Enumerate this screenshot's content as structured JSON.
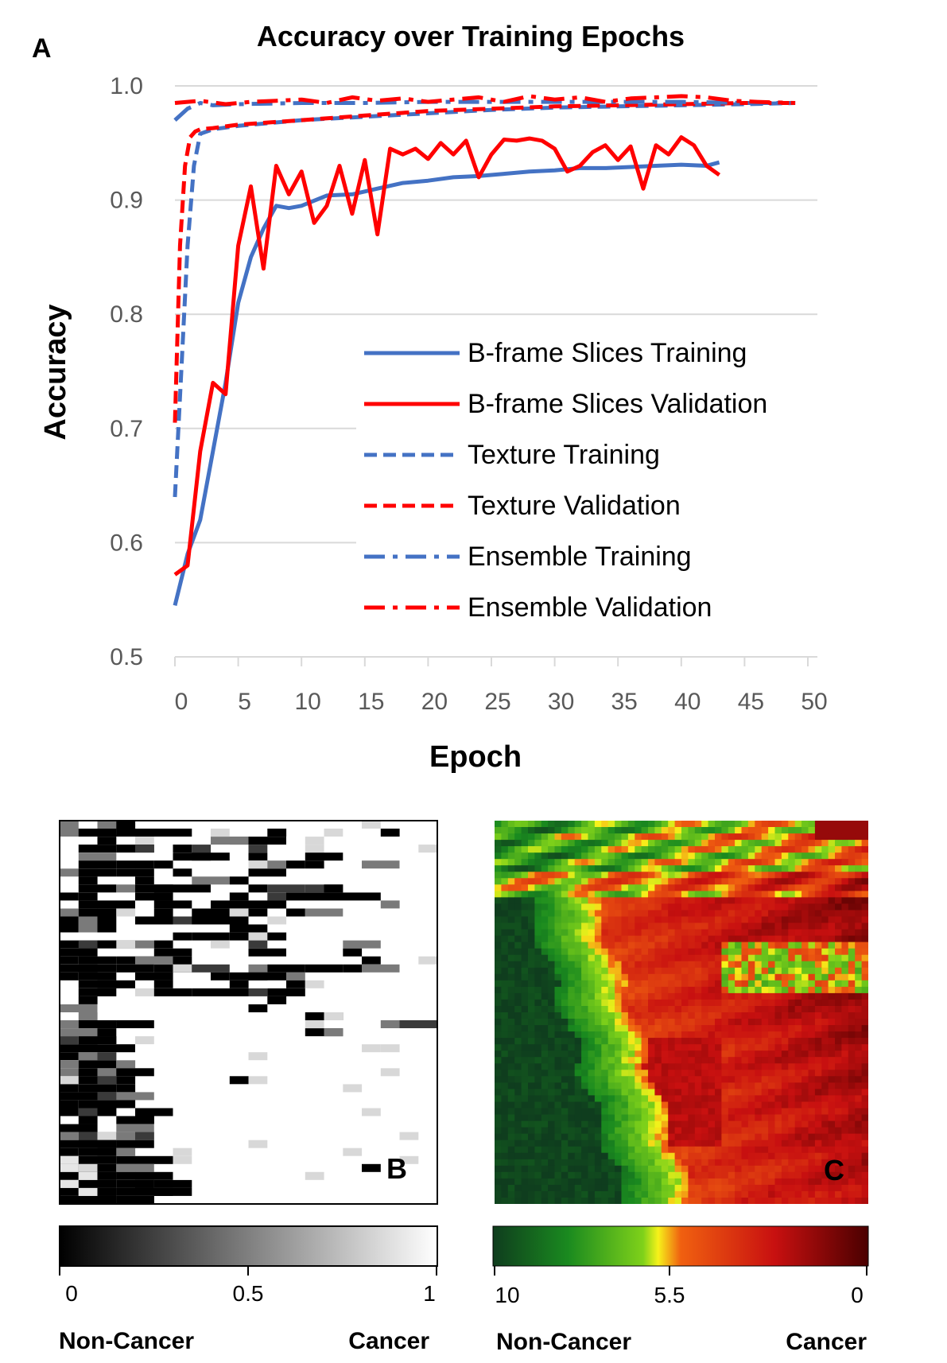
{
  "panel_a": {
    "label": "A",
    "chart_data": {
      "type": "line",
      "title": "Accuracy over Training Epochs",
      "xlabel": "Epoch",
      "ylabel": "Accuracy",
      "xlim": [
        0,
        50
      ],
      "ylim": [
        0.5,
        1.0
      ],
      "xticks": [
        "0",
        "5",
        "10",
        "15",
        "20",
        "25",
        "30",
        "35",
        "40",
        "45",
        "50"
      ],
      "yticks": [
        "0.5",
        "0.6",
        "0.7",
        "0.8",
        "0.9",
        "1.0"
      ],
      "grid": "horizontal",
      "legend_position": "center-right",
      "series": [
        {
          "name": "B-frame Slices Training",
          "color": "#4472C4",
          "dash": "solid",
          "x": [
            0,
            1,
            2,
            3,
            4,
            5,
            6,
            7,
            8,
            9,
            10,
            12,
            14,
            16,
            18,
            20,
            22,
            24,
            26,
            28,
            30,
            32,
            34,
            36,
            38,
            40,
            42,
            43
          ],
          "y": [
            0.545,
            0.59,
            0.62,
            0.68,
            0.74,
            0.81,
            0.85,
            0.875,
            0.895,
            0.893,
            0.895,
            0.904,
            0.905,
            0.91,
            0.915,
            0.917,
            0.92,
            0.921,
            0.923,
            0.925,
            0.926,
            0.928,
            0.928,
            0.929,
            0.93,
            0.931,
            0.93,
            0.933
          ]
        },
        {
          "name": "B-frame Slices Validation",
          "color": "#FF0000",
          "dash": "solid",
          "x": [
            0,
            1,
            2,
            3,
            4,
            5,
            6,
            7,
            8,
            9,
            10,
            11,
            12,
            13,
            14,
            15,
            16,
            17,
            18,
            19,
            20,
            21,
            22,
            23,
            24,
            25,
            26,
            27,
            28,
            29,
            30,
            31,
            32,
            33,
            34,
            35,
            36,
            37,
            38,
            39,
            40,
            41,
            42,
            43
          ],
          "y": [
            0.572,
            0.58,
            0.68,
            0.74,
            0.73,
            0.86,
            0.912,
            0.84,
            0.93,
            0.905,
            0.925,
            0.88,
            0.895,
            0.93,
            0.888,
            0.935,
            0.87,
            0.945,
            0.94,
            0.945,
            0.936,
            0.95,
            0.94,
            0.952,
            0.92,
            0.94,
            0.953,
            0.952,
            0.954,
            0.952,
            0.945,
            0.925,
            0.93,
            0.942,
            0.948,
            0.935,
            0.947,
            0.91,
            0.948,
            0.94,
            0.955,
            0.948,
            0.93,
            0.922
          ]
        },
        {
          "name": "Texture Training",
          "color": "#4472C4",
          "dash": "dash",
          "x": [
            0,
            0.5,
            1,
            1.5,
            2,
            3,
            5,
            10,
            15,
            20,
            25,
            30,
            35,
            40,
            45,
            49
          ],
          "y": [
            0.64,
            0.75,
            0.86,
            0.93,
            0.958,
            0.962,
            0.965,
            0.97,
            0.973,
            0.976,
            0.979,
            0.981,
            0.982,
            0.983,
            0.984,
            0.985
          ]
        },
        {
          "name": "Texture Validation",
          "color": "#FF0000",
          "dash": "dash",
          "x": [
            0,
            0.4,
            0.8,
            1.2,
            1.6,
            2,
            3,
            5,
            10,
            15,
            20,
            25,
            30,
            35,
            40,
            45,
            49
          ],
          "y": [
            0.705,
            0.86,
            0.93,
            0.955,
            0.96,
            0.962,
            0.963,
            0.966,
            0.97,
            0.974,
            0.978,
            0.98,
            0.982,
            0.983,
            0.984,
            0.985,
            0.985
          ]
        },
        {
          "name": "Ensemble Training",
          "color": "#4472C4",
          "dash": "dashdot",
          "x": [
            0,
            1,
            2,
            3,
            5,
            10,
            15,
            20,
            25,
            30,
            35,
            40,
            45,
            49
          ],
          "y": [
            0.97,
            0.98,
            0.985,
            0.983,
            0.984,
            0.985,
            0.985,
            0.986,
            0.986,
            0.986,
            0.986,
            0.986,
            0.985,
            0.985
          ]
        },
        {
          "name": "Ensemble Validation",
          "color": "#FF0000",
          "dash": "dashdot",
          "x": [
            0,
            2,
            4,
            6,
            8,
            10,
            12,
            14,
            16,
            18,
            20,
            22,
            24,
            26,
            28,
            30,
            32,
            34,
            36,
            38,
            40,
            42,
            44,
            46,
            49
          ],
          "y": [
            0.985,
            0.987,
            0.984,
            0.986,
            0.987,
            0.988,
            0.985,
            0.99,
            0.987,
            0.989,
            0.986,
            0.988,
            0.99,
            0.986,
            0.991,
            0.988,
            0.99,
            0.986,
            0.989,
            0.99,
            0.991,
            0.99,
            0.987,
            0.986,
            0.985
          ]
        }
      ]
    }
  },
  "panel_b": {
    "label": "B",
    "colorbar": {
      "ticks": [
        "0",
        "0.5",
        "1"
      ],
      "left_label": "Non-Cancer",
      "right_label": "Cancer",
      "colors": [
        "#000000",
        "#ffffff"
      ]
    }
  },
  "panel_c": {
    "label": "C",
    "colorbar": {
      "ticks": [
        "10",
        "5.5",
        "0"
      ],
      "left_label": "Non-Cancer",
      "right_label": "Cancer",
      "colors": [
        "#0f3d1e",
        "#1a8a1f",
        "#7fd11a",
        "#f6f21a",
        "#f06010",
        "#c81010",
        "#4a0000"
      ]
    }
  }
}
